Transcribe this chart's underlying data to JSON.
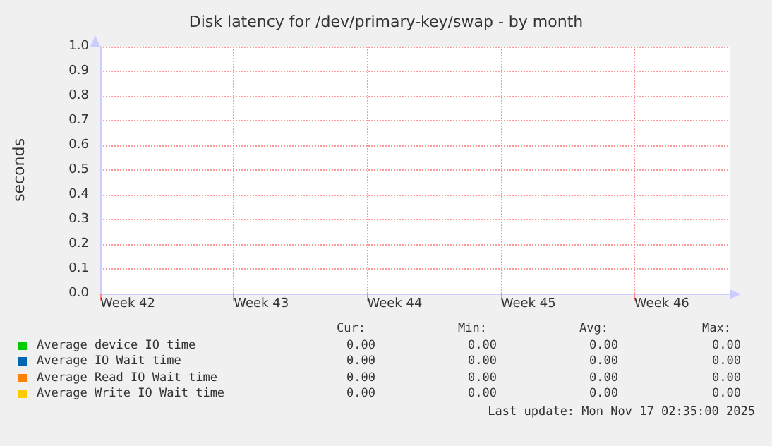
{
  "chart_data": {
    "type": "line",
    "title": "Disk latency for /dev/primary-key/swap - by month",
    "ylabel": "seconds",
    "categories": [
      "Week 42",
      null,
      null,
      null,
      null,
      null,
      null,
      "Week 43",
      null,
      null,
      null,
      null,
      null,
      null,
      "Week 44",
      null,
      null,
      null,
      null,
      null,
      null,
      "Week 45",
      null,
      null,
      null,
      null,
      null,
      null,
      "Week 46",
      null,
      null,
      null,
      null,
      null
    ],
    "series": [
      {
        "name": "Average device IO time",
        "color": "#00cc00",
        "values": [
          null,
          null,
          null,
          null,
          null,
          null,
          null,
          null,
          null,
          null,
          null,
          null,
          null,
          null,
          null,
          null,
          null,
          null,
          null,
          null,
          null,
          null,
          null,
          null,
          null,
          null,
          null,
          null,
          null,
          null,
          null,
          null,
          null,
          null
        ]
      },
      {
        "name": "Average IO Wait time",
        "color": "#0066b3",
        "values": [
          null,
          null,
          null,
          null,
          null,
          null,
          null,
          null,
          null,
          null,
          null,
          null,
          null,
          null,
          null,
          null,
          null,
          null,
          null,
          null,
          null,
          null,
          null,
          null,
          null,
          null,
          null,
          null,
          null,
          null,
          null,
          null,
          null,
          null
        ]
      },
      {
        "name": "Average Read IO Wait time",
        "color": "#ff8000",
        "values": [
          null,
          null,
          null,
          null,
          null,
          null,
          null,
          null,
          null,
          null,
          null,
          null,
          null,
          null,
          null,
          null,
          null,
          null,
          null,
          null,
          null,
          null,
          null,
          null,
          null,
          null,
          null,
          null,
          null,
          null,
          null,
          null,
          null,
          null
        ]
      },
      {
        "name": "Average Write IO Wait time",
        "color": "#ffcc00",
        "values": [
          null,
          null,
          null,
          null,
          null,
          null,
          null,
          null,
          null,
          null,
          null,
          null,
          null,
          null,
          null,
          null,
          null,
          null,
          null,
          null,
          null,
          null,
          null,
          null,
          null,
          null,
          null,
          null,
          null,
          null,
          null,
          null,
          null,
          null
        ]
      }
    ],
    "ylim": [
      0,
      1
    ],
    "yticks": [
      {
        "value": 0,
        "label": "0.0"
      },
      {
        "value": 0.1,
        "label": "0.1"
      },
      {
        "value": 0.2,
        "label": "0.2"
      },
      {
        "value": 0.3,
        "label": "0.3"
      },
      {
        "value": 0.4,
        "label": "0.4"
      },
      {
        "value": 0.5,
        "label": "0.5"
      },
      {
        "value": 0.6,
        "label": "0.6"
      },
      {
        "value": 0.7,
        "label": "0.7"
      },
      {
        "value": 0.8,
        "label": "0.8"
      },
      {
        "value": 0.9,
        "label": "0.9"
      },
      {
        "value": 1,
        "label": "1.0"
      }
    ],
    "grid": true,
    "legend": "bottom left",
    "annotations": [
      "Cur:",
      "Min:",
      "Avg:",
      "Max:",
      "0.00",
      "0.00",
      "0.00",
      "0.00",
      "0.00",
      "0.00",
      "0.00",
      "0.00",
      "0.00",
      "0.00",
      "0.00",
      "0.00",
      "0.00",
      "0.00",
      "0.00",
      "0.00",
      "Last update:  Mon Nov 17 02:35:00 2025"
    ]
  }
}
